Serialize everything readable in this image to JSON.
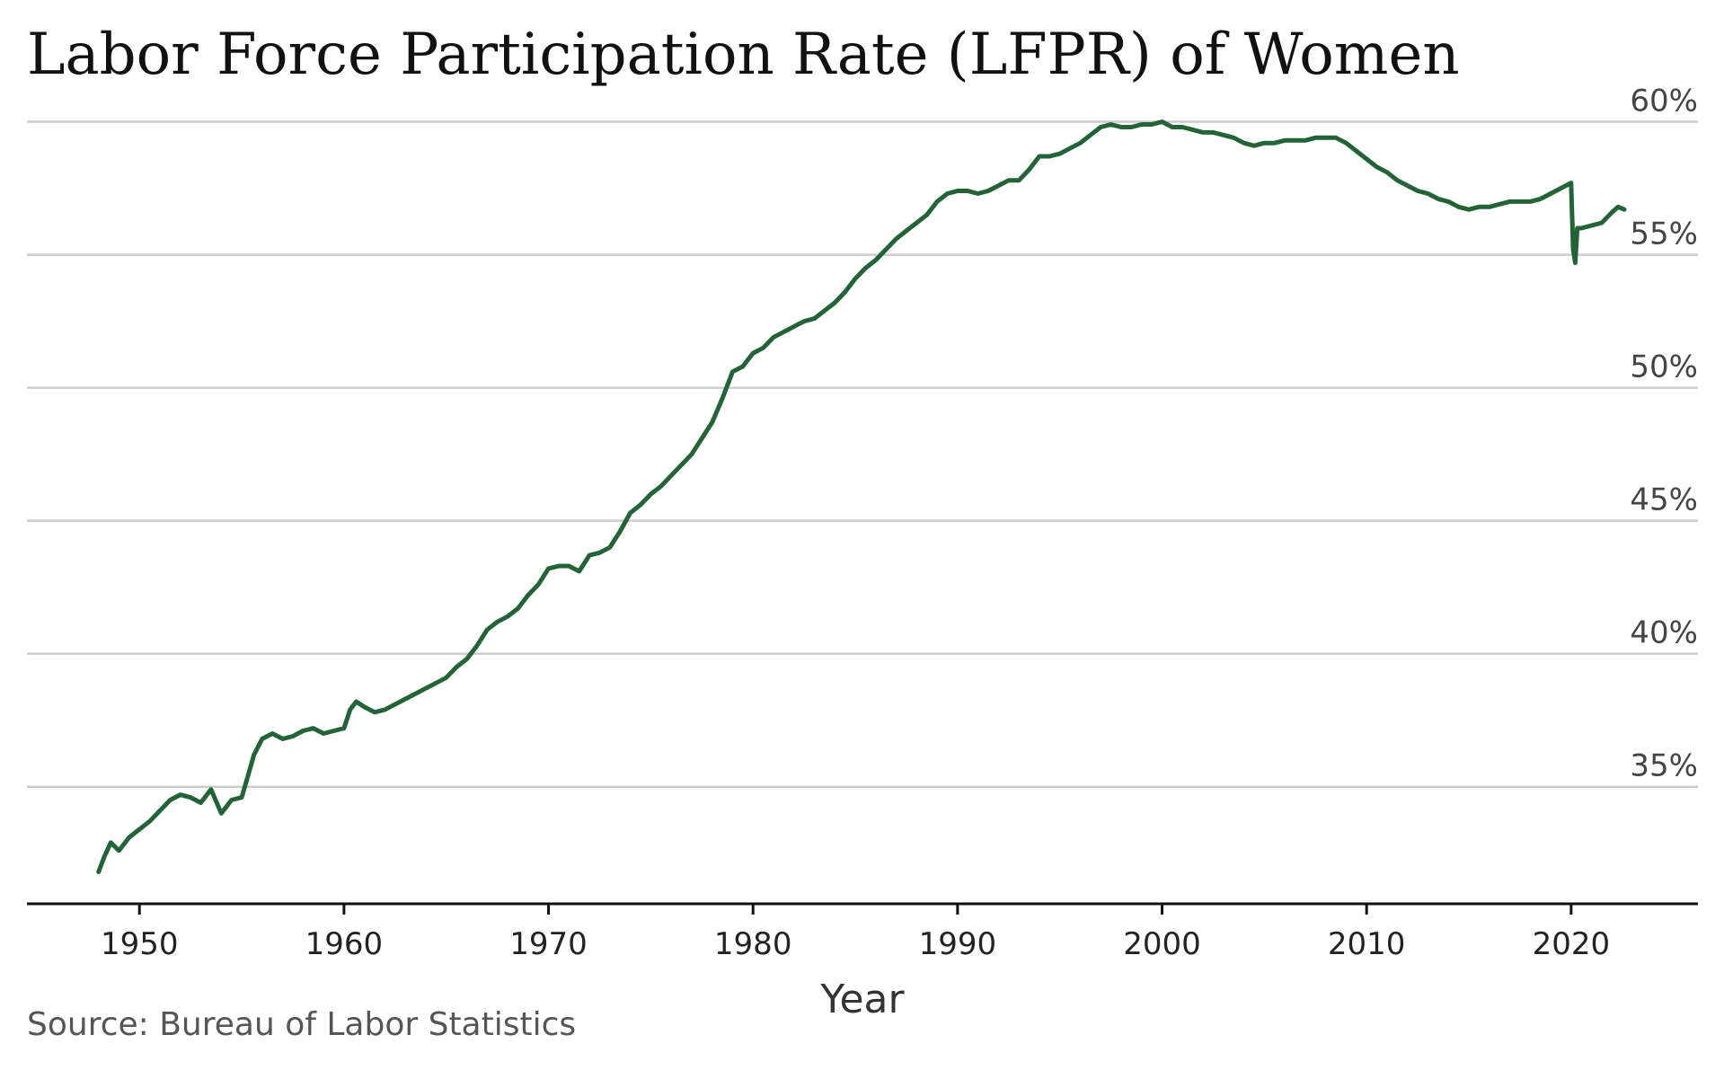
{
  "chart_data": {
    "type": "line",
    "title": "Labor Force Participation Rate (LFPR) of Women",
    "xlabel": "Year",
    "ylabel": "",
    "source": "Source: Bureau of Labor Statistics",
    "xlim": [
      1944.5,
      2026.2
    ],
    "ylim": [
      30.6,
      61.2
    ],
    "x_ticks": [
      1950,
      1960,
      1970,
      1980,
      1990,
      2000,
      2010,
      2020
    ],
    "x_tick_labels": [
      "1950",
      "1960",
      "1970",
      "1980",
      "1990",
      "2000",
      "2010",
      "2020"
    ],
    "y_ticks": [
      35,
      40,
      45,
      50,
      55,
      60
    ],
    "y_tick_labels": [
      "35%",
      "40%",
      "45%",
      "50%",
      "55%",
      "60%"
    ],
    "grid": true,
    "line_color": "#246338",
    "series": [
      {
        "x": [
          1948.0,
          1948.3,
          1948.6,
          1949.0,
          1949.5,
          1950.0,
          1950.5,
          1951.0,
          1951.5,
          1952.0,
          1952.5,
          1953.0,
          1953.5,
          1954.0,
          1954.5,
          1955.0,
          1955.3,
          1955.6,
          1956.0,
          1956.5,
          1957.0,
          1957.5,
          1958.0,
          1958.5,
          1959.0,
          1959.5,
          1960.0,
          1960.3,
          1960.6,
          1961.0,
          1961.5,
          1962.0,
          1962.5,
          1963.0,
          1963.5,
          1964.0,
          1964.5,
          1965.0,
          1965.5,
          1966.0,
          1966.5,
          1967.0,
          1967.5,
          1968.0,
          1968.5,
          1969.0,
          1969.5,
          1970.0,
          1970.5,
          1971.0,
          1971.5,
          1972.0,
          1972.5,
          1973.0,
          1973.5,
          1974.0,
          1974.5,
          1975.0,
          1975.5,
          1976.0,
          1976.5,
          1977.0,
          1977.5,
          1978.0,
          1978.5,
          1979.0,
          1979.5,
          1980.0,
          1980.5,
          1981.0,
          1981.5,
          1982.0,
          1982.5,
          1983.0,
          1983.5,
          1984.0,
          1984.5,
          1985.0,
          1985.5,
          1986.0,
          1986.5,
          1987.0,
          1987.5,
          1988.0,
          1988.5,
          1989.0,
          1989.5,
          1990.0,
          1990.5,
          1991.0,
          1991.5,
          1992.0,
          1992.5,
          1993.0,
          1993.5,
          1994.0,
          1994.5,
          1995.0,
          1995.5,
          1996.0,
          1996.5,
          1997.0,
          1997.5,
          1998.0,
          1998.5,
          1999.0,
          1999.5,
          2000.0,
          2000.5,
          2001.0,
          2001.5,
          2002.0,
          2002.5,
          2003.0,
          2003.5,
          2004.0,
          2004.5,
          2005.0,
          2005.5,
          2006.0,
          2006.5,
          2007.0,
          2007.5,
          2008.0,
          2008.5,
          2009.0,
          2009.5,
          2010.0,
          2010.5,
          2011.0,
          2011.5,
          2012.0,
          2012.5,
          2013.0,
          2013.5,
          2014.0,
          2014.5,
          2015.0,
          2015.5,
          2016.0,
          2016.5,
          2017.0,
          2017.5,
          2018.0,
          2018.5,
          2019.0,
          2019.5,
          2020.0,
          2020.1,
          2020.2,
          2020.3,
          2020.5,
          2021.0,
          2021.5,
          2022.0,
          2022.3,
          2022.6
        ],
        "values": [
          31.8,
          32.4,
          32.9,
          32.6,
          33.1,
          33.4,
          33.7,
          34.1,
          34.5,
          34.7,
          34.6,
          34.4,
          34.9,
          34.0,
          34.5,
          34.6,
          35.4,
          36.2,
          36.8,
          37.0,
          36.8,
          36.9,
          37.1,
          37.2,
          37.0,
          37.1,
          37.2,
          37.9,
          38.2,
          38.0,
          37.8,
          37.9,
          38.1,
          38.3,
          38.5,
          38.7,
          38.9,
          39.1,
          39.5,
          39.8,
          40.3,
          40.9,
          41.2,
          41.4,
          41.7,
          42.2,
          42.6,
          43.2,
          43.3,
          43.3,
          43.1,
          43.7,
          43.8,
          44.0,
          44.6,
          45.3,
          45.6,
          46.0,
          46.3,
          46.7,
          47.1,
          47.5,
          48.1,
          48.7,
          49.6,
          50.6,
          50.8,
          51.3,
          51.5,
          51.9,
          52.1,
          52.3,
          52.5,
          52.6,
          52.9,
          53.2,
          53.6,
          54.1,
          54.5,
          54.8,
          55.2,
          55.6,
          55.9,
          56.2,
          56.5,
          57.0,
          57.3,
          57.4,
          57.4,
          57.3,
          57.4,
          57.6,
          57.8,
          57.8,
          58.2,
          58.7,
          58.7,
          58.8,
          59.0,
          59.2,
          59.5,
          59.8,
          59.9,
          59.8,
          59.8,
          59.9,
          59.9,
          60.0,
          59.8,
          59.8,
          59.7,
          59.6,
          59.6,
          59.5,
          59.4,
          59.2,
          59.1,
          59.2,
          59.2,
          59.3,
          59.3,
          59.3,
          59.4,
          59.4,
          59.4,
          59.2,
          58.9,
          58.6,
          58.3,
          58.1,
          57.8,
          57.6,
          57.4,
          57.3,
          57.1,
          57.0,
          56.8,
          56.7,
          56.8,
          56.8,
          56.9,
          57.0,
          57.0,
          57.0,
          57.1,
          57.3,
          57.5,
          57.7,
          55.2,
          54.7,
          56.0,
          56.0,
          56.1,
          56.2,
          56.6,
          56.8,
          56.7
        ]
      }
    ]
  }
}
